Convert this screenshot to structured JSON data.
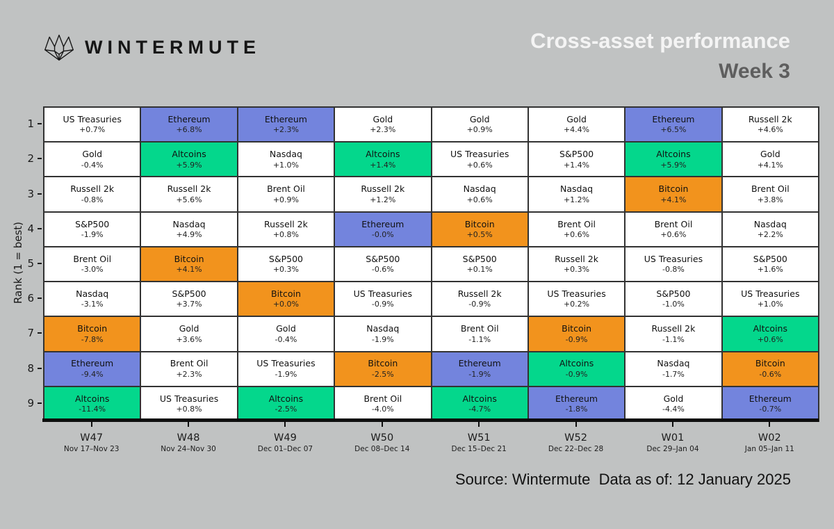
{
  "header": {
    "logo_text": "WINTERMUTE",
    "title": "Cross-asset performance",
    "subtitle": "Week 3"
  },
  "colors": {
    "background": "#c0c2c2",
    "cell_border": "#323232",
    "title_color": "#f4f4f4",
    "subtitle_color": "#5e5e5e",
    "default_cell_color": "#ffffff",
    "asset_colors": {
      "Bitcoin": "#f2931d",
      "Ethereum": "#7384dd",
      "Altcoins": "#04d78c"
    }
  },
  "chart_data": {
    "type": "heatmap",
    "title": "Cross-asset performance",
    "subtitle": "Week 3",
    "ylabel": "Rank (1 = best)",
    "legend_position": "none",
    "grid": "cell-borders",
    "ranks": [
      "1",
      "2",
      "3",
      "4",
      "5",
      "6",
      "7",
      "8",
      "9"
    ],
    "weeks": [
      {
        "label": "W47",
        "dates": "Nov 17–Nov 23"
      },
      {
        "label": "W48",
        "dates": "Nov 24–Nov 30"
      },
      {
        "label": "W49",
        "dates": "Dec 01–Dec 07"
      },
      {
        "label": "W50",
        "dates": "Dec 08–Dec 14"
      },
      {
        "label": "W51",
        "dates": "Dec 15–Dec 21"
      },
      {
        "label": "W52",
        "dates": "Dec 22–Dec 28"
      },
      {
        "label": "W01",
        "dates": "Dec 29–Jan 04"
      },
      {
        "label": "W02",
        "dates": "Jan 05–Jan 11"
      }
    ],
    "rows": [
      [
        [
          "US Treasuries",
          "+0.7%"
        ],
        [
          "Ethereum",
          "+6.8%"
        ],
        [
          "Ethereum",
          "+2.3%"
        ],
        [
          "Gold",
          "+2.3%"
        ],
        [
          "Gold",
          "+0.9%"
        ],
        [
          "Gold",
          "+4.4%"
        ],
        [
          "Ethereum",
          "+6.5%"
        ],
        [
          "Russell 2k",
          "+4.6%"
        ]
      ],
      [
        [
          "Gold",
          "-0.4%"
        ],
        [
          "Altcoins",
          "+5.9%"
        ],
        [
          "Nasdaq",
          "+1.0%"
        ],
        [
          "Altcoins",
          "+1.4%"
        ],
        [
          "US Treasuries",
          "+0.6%"
        ],
        [
          "S&P500",
          "+1.4%"
        ],
        [
          "Altcoins",
          "+5.9%"
        ],
        [
          "Gold",
          "+4.1%"
        ]
      ],
      [
        [
          "Russell 2k",
          "-0.8%"
        ],
        [
          "Russell 2k",
          "+5.6%"
        ],
        [
          "Brent Oil",
          "+0.9%"
        ],
        [
          "Russell 2k",
          "+1.2%"
        ],
        [
          "Nasdaq",
          "+0.6%"
        ],
        [
          "Nasdaq",
          "+1.2%"
        ],
        [
          "Bitcoin",
          "+4.1%"
        ],
        [
          "Brent Oil",
          "+3.8%"
        ]
      ],
      [
        [
          "S&P500",
          "-1.9%"
        ],
        [
          "Nasdaq",
          "+4.9%"
        ],
        [
          "Russell 2k",
          "+0.8%"
        ],
        [
          "Ethereum",
          "-0.0%"
        ],
        [
          "Bitcoin",
          "+0.5%"
        ],
        [
          "Brent Oil",
          "+0.6%"
        ],
        [
          "Brent Oil",
          "+0.6%"
        ],
        [
          "Nasdaq",
          "+2.2%"
        ]
      ],
      [
        [
          "Brent Oil",
          "-3.0%"
        ],
        [
          "Bitcoin",
          "+4.1%"
        ],
        [
          "S&P500",
          "+0.3%"
        ],
        [
          "S&P500",
          "-0.6%"
        ],
        [
          "S&P500",
          "+0.1%"
        ],
        [
          "Russell 2k",
          "+0.3%"
        ],
        [
          "US Treasuries",
          "-0.8%"
        ],
        [
          "S&P500",
          "+1.6%"
        ]
      ],
      [
        [
          "Nasdaq",
          "-3.1%"
        ],
        [
          "S&P500",
          "+3.7%"
        ],
        [
          "Bitcoin",
          "+0.0%"
        ],
        [
          "US Treasuries",
          "-0.9%"
        ],
        [
          "Russell 2k",
          "-0.9%"
        ],
        [
          "US Treasuries",
          "+0.2%"
        ],
        [
          "S&P500",
          "-1.0%"
        ],
        [
          "US Treasuries",
          "+1.0%"
        ]
      ],
      [
        [
          "Bitcoin",
          "-7.8%"
        ],
        [
          "Gold",
          "+3.6%"
        ],
        [
          "Gold",
          "-0.4%"
        ],
        [
          "Nasdaq",
          "-1.9%"
        ],
        [
          "Brent Oil",
          "-1.1%"
        ],
        [
          "Bitcoin",
          "-0.9%"
        ],
        [
          "Russell 2k",
          "-1.1%"
        ],
        [
          "Altcoins",
          "+0.6%"
        ]
      ],
      [
        [
          "Ethereum",
          "-9.4%"
        ],
        [
          "Brent Oil",
          "+2.3%"
        ],
        [
          "US Treasuries",
          "-1.9%"
        ],
        [
          "Bitcoin",
          "-2.5%"
        ],
        [
          "Ethereum",
          "-1.9%"
        ],
        [
          "Altcoins",
          "-0.9%"
        ],
        [
          "Nasdaq",
          "-1.7%"
        ],
        [
          "Bitcoin",
          "-0.6%"
        ]
      ],
      [
        [
          "Altcoins",
          "-11.4%"
        ],
        [
          "US Treasuries",
          "+0.8%"
        ],
        [
          "Altcoins",
          "-2.5%"
        ],
        [
          "Brent Oil",
          "-4.0%"
        ],
        [
          "Altcoins",
          "-4.7%"
        ],
        [
          "Ethereum",
          "-1.8%"
        ],
        [
          "Gold",
          "-4.4%"
        ],
        [
          "Ethereum",
          "-0.7%"
        ]
      ]
    ]
  },
  "footer": {
    "source_text": "Source: Wintermute  Data as of: 12 January 2025"
  }
}
